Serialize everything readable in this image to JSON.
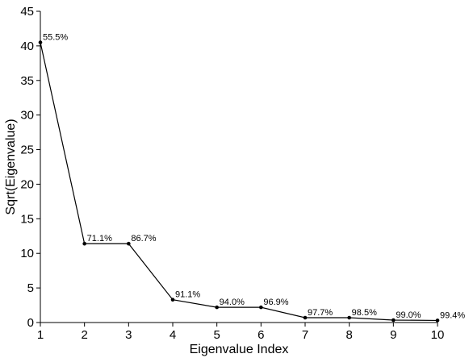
{
  "chart_data": {
    "type": "line",
    "xlabel": "Eigenvalue Index",
    "ylabel": "Sqrt(Eigenvalue)",
    "xlim": [
      1,
      10
    ],
    "ylim": [
      0,
      45
    ],
    "x_ticks": [
      "1",
      "2",
      "3",
      "4",
      "5",
      "6",
      "7",
      "8",
      "9",
      "10"
    ],
    "y_ticks": [
      "0",
      "5",
      "10",
      "15",
      "20",
      "25",
      "30",
      "35",
      "40",
      "45"
    ],
    "grid": false,
    "series": [
      {
        "x": [
          1,
          2,
          3,
          4,
          5,
          6,
          7,
          8,
          9,
          10
        ],
        "values": [
          40.5,
          11.4,
          11.4,
          3.3,
          2.2,
          2.2,
          0.7,
          0.7,
          0.35,
          0.3
        ],
        "labels": [
          "55.5%",
          "71.1%",
          "86.7%",
          "91.1%",
          "94.0%",
          "96.9%",
          "97.7%",
          "98.5%",
          "99.0%",
          "99.4%"
        ],
        "color": "#000000"
      }
    ]
  }
}
